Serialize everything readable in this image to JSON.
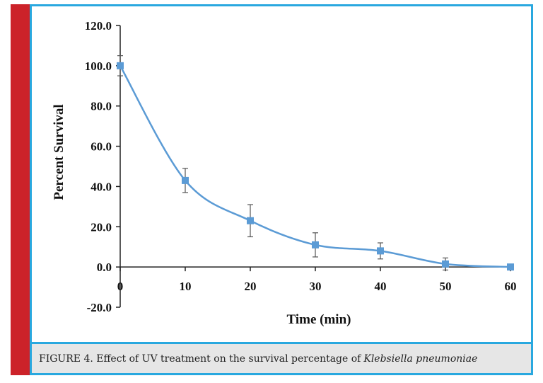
{
  "colors": {
    "accent_bar": "#cc2229",
    "frame_border": "#29a8df",
    "series_line": "#5b9bd5",
    "caption_bg": "#e6e6e6"
  },
  "caption": {
    "prefix": "FIGURE 4. Effect of UV treatment on the survival percentage of",
    "organism": "Klebsiella pneumoniae"
  },
  "chart_data": {
    "type": "line",
    "title": "",
    "xlabel": "Time (min)",
    "ylabel": "Percent Survival",
    "x": [
      0,
      10,
      20,
      30,
      40,
      50,
      60
    ],
    "xticks": [
      "0",
      "10",
      "20",
      "30",
      "40",
      "50",
      "60"
    ],
    "yticks": [
      "-20.0",
      "0.0",
      "20.0",
      "40.0",
      "60.0",
      "80.0",
      "100.0",
      "120.0"
    ],
    "xlim": [
      0,
      60
    ],
    "ylim": [
      -20,
      120
    ],
    "grid": false,
    "legend": "none",
    "series": [
      {
        "values": [
          100,
          43,
          23,
          11,
          8,
          1.5,
          0
        ],
        "error": [
          5,
          6,
          8,
          6,
          4,
          3,
          0
        ]
      }
    ]
  }
}
